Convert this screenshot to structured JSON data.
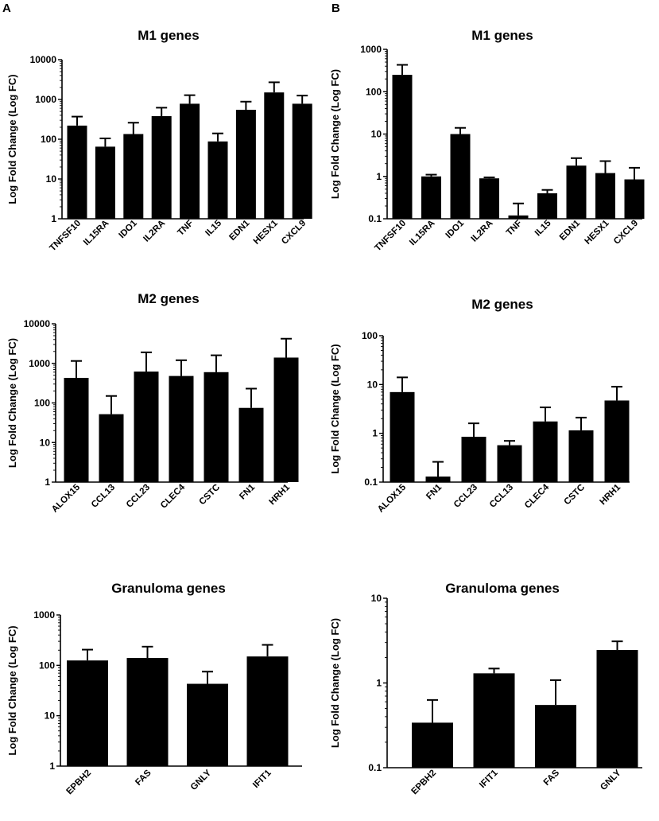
{
  "panel_labels": [
    "A",
    "B"
  ],
  "chart_data": [
    {
      "type": "bar",
      "panel": "A",
      "scale": "log",
      "title": "M1 genes",
      "xlabel": "",
      "ylabel": "Log Fold Change (Log FC)",
      "ylim": [
        1,
        10000
      ],
      "yticks": [
        "1",
        "10",
        "100",
        "1000",
        "10000"
      ],
      "categories": [
        "TNFSF10",
        "IL15RA",
        "IDO1",
        "IL2RA",
        "TNF",
        "IL15",
        "EDN1",
        "HESX1",
        "CXCL9"
      ],
      "values": [
        220,
        65,
        135,
        380,
        780,
        88,
        550,
        1500,
        780
      ],
      "error_upper": [
        370,
        105,
        260,
        620,
        1280,
        140,
        880,
        2700,
        1250
      ]
    },
    {
      "type": "bar",
      "panel": "B",
      "scale": "log",
      "title": "M1 genes",
      "xlabel": "",
      "ylabel": "Log Fold Change (Log FC)",
      "ylim": [
        0.1,
        1000
      ],
      "yticks": [
        "0.1",
        "1",
        "10",
        "100",
        "1000"
      ],
      "categories": [
        "TNFSF10",
        "IL15RA",
        "IDO1",
        "IL2RA",
        "TNF",
        "IL15",
        "EDN1",
        "HESX1",
        "CXCL9"
      ],
      "values": [
        250,
        1.0,
        10,
        0.9,
        0.12,
        0.4,
        1.8,
        1.2,
        0.85
      ],
      "error_upper": [
        430,
        1.1,
        14,
        0.95,
        0.23,
        0.48,
        2.7,
        2.3,
        1.6
      ]
    },
    {
      "type": "bar",
      "panel": "A",
      "scale": "log",
      "title": "M2 genes",
      "xlabel": "",
      "ylabel": "Log Fold Change (Log FC)",
      "ylim": [
        1,
        10000
      ],
      "yticks": [
        "1",
        "10",
        "100",
        "1000",
        "10000"
      ],
      "categories": [
        "ALOX15",
        "CCL13",
        "CCL23",
        "CLEC4",
        "CSTC",
        "FN1",
        "HRH1"
      ],
      "values": [
        430,
        52,
        620,
        480,
        600,
        75,
        1400
      ],
      "error_upper": [
        1150,
        150,
        1900,
        1200,
        1600,
        230,
        4200
      ]
    },
    {
      "type": "bar",
      "panel": "B",
      "scale": "log",
      "title": "M2 genes",
      "xlabel": "",
      "ylabel": "Log Fold Change (Log FC)",
      "ylim": [
        0.1,
        100
      ],
      "yticks": [
        "0.1",
        "1",
        "10",
        "100"
      ],
      "categories": [
        "ALOX15",
        "FN1",
        "CCL23",
        "CCL13",
        "CLEC4",
        "CSTC",
        "HRH1"
      ],
      "values": [
        7,
        0.13,
        0.85,
        0.57,
        1.75,
        1.15,
        4.7
      ],
      "error_upper": [
        14,
        0.26,
        1.6,
        0.7,
        3.4,
        2.1,
        9
      ]
    },
    {
      "type": "bar",
      "panel": "A",
      "scale": "log",
      "title": "Granuloma   genes",
      "xlabel": "",
      "ylabel": "Log Fold Change (Log FC)",
      "ylim": [
        1,
        1000
      ],
      "yticks": [
        "1",
        "10",
        "100",
        "1000"
      ],
      "categories": [
        "EPBH2",
        "FAS",
        "GNLY",
        "IFIT1"
      ],
      "values": [
        125,
        140,
        43,
        150
      ],
      "error_upper": [
        205,
        235,
        75,
        255
      ]
    },
    {
      "type": "bar",
      "panel": "B",
      "scale": "log",
      "title": "Granuloma   genes",
      "xlabel": "",
      "ylabel": "Log Fold Change (Log FC)",
      "ylim": [
        0.1,
        10
      ],
      "yticks": [
        "0.1",
        "1",
        "10"
      ],
      "categories": [
        "EPBH2",
        "IFIT1",
        "FAS",
        "GNLY"
      ],
      "values": [
        0.34,
        1.3,
        0.55,
        2.45
      ],
      "error_upper": [
        0.63,
        1.48,
        1.08,
        3.1
      ]
    }
  ]
}
